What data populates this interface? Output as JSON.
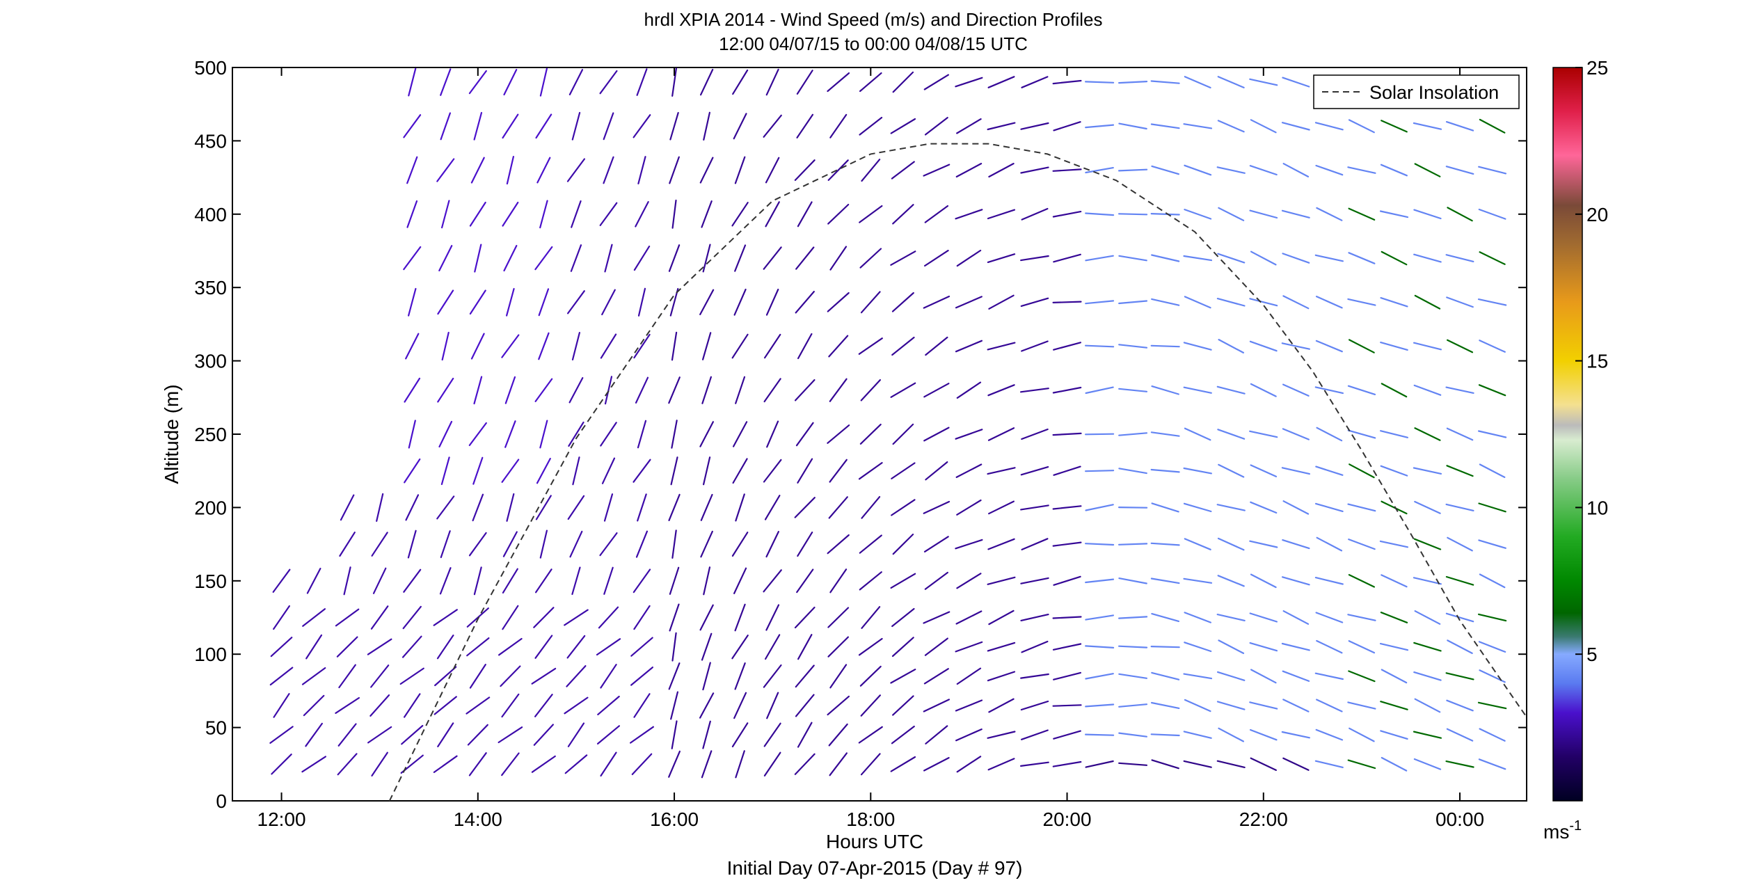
{
  "chart_data": {
    "type": "wind-barb-profile",
    "title": "hrdl XPIA 2014 - Wind Speed (m/s) and Direction Profiles",
    "subtitle": "12:00 04/07/15 to 00:00 04/08/15  UTC",
    "xlabel": "Hours UTC",
    "xlabel2": "Initial Day 07-Apr-2015 (Day # 97)",
    "ylabel": "Altitude (m)",
    "xlim": [
      11.5,
      24.68
    ],
    "ylim": [
      0,
      500
    ],
    "x_ticks": [
      12,
      14,
      16,
      18,
      20,
      22,
      24
    ],
    "x_tick_labels": [
      "12:00",
      "14:00",
      "16:00",
      "18:00",
      "20:00",
      "22:00",
      "00:00"
    ],
    "y_ticks": [
      0,
      50,
      100,
      150,
      200,
      250,
      300,
      350,
      400,
      450,
      500
    ],
    "y_tick_labels": [
      "0",
      "50",
      "100",
      "150",
      "200",
      "250",
      "300",
      "350",
      "400",
      "450",
      "500"
    ],
    "legend": {
      "label": "Solar Insolation",
      "placement": "top-right",
      "style": "dashed",
      "color": "#333333"
    },
    "colorbar": {
      "min": 0,
      "max": 25,
      "ticks": [
        5,
        10,
        15,
        20,
        25
      ],
      "tick_labels": [
        "5",
        "10",
        "15",
        "20",
        "25"
      ],
      "unit_label": "ms",
      "unit_exp": "-1",
      "stops": [
        [
          0,
          "#000022"
        ],
        [
          1.5,
          "#220066"
        ],
        [
          3,
          "#4a10cc"
        ],
        [
          4,
          "#5a7af0"
        ],
        [
          5,
          "#86aaff"
        ],
        [
          5.6,
          "#3a7a70"
        ],
        [
          6.4,
          "#006600"
        ],
        [
          7.5,
          "#008800"
        ],
        [
          9,
          "#22aa22"
        ],
        [
          11,
          "#88cc88"
        ],
        [
          12.3,
          "#d8ecd0"
        ],
        [
          12.8,
          "#bbbbbb"
        ],
        [
          13.5,
          "#f4e090"
        ],
        [
          15,
          "#f2d000"
        ],
        [
          17,
          "#e89a1a"
        ],
        [
          19,
          "#a06a30"
        ],
        [
          20.3,
          "#7a4a38"
        ],
        [
          22,
          "#ff6699"
        ],
        [
          23.5,
          "#e0204a"
        ],
        [
          25,
          "#aa0000"
        ]
      ]
    },
    "solar_insolation": {
      "x": [
        13.1,
        14.0,
        15.0,
        16.0,
        17.0,
        18.0,
        18.6,
        19.2,
        19.8,
        20.5,
        21.3,
        22.0,
        22.5,
        23.0,
        23.5,
        24.0,
        24.67
      ],
      "y": [
        0,
        124,
        247,
        345,
        409,
        441,
        448,
        448,
        441,
        423,
        388,
        338,
        293,
        239,
        182,
        123,
        58
      ]
    },
    "wind": {
      "times": [
        12.0,
        12.33,
        12.67,
        13.0,
        13.33,
        13.67,
        14.0,
        14.33,
        14.67,
        15.0,
        15.33,
        15.67,
        16.0,
        16.33,
        16.67,
        17.0,
        17.33,
        17.67,
        18.0,
        18.33,
        18.67,
        19.0,
        19.33,
        19.67,
        20.0,
        20.33,
        20.67,
        21.0,
        21.33,
        21.67,
        22.0,
        22.33,
        22.67,
        23.0,
        23.33,
        23.67,
        24.0,
        24.33
      ],
      "altitudes": [
        25,
        45,
        65,
        85,
        105,
        125,
        150,
        175,
        200,
        225,
        250,
        280,
        310,
        340,
        370,
        400,
        430,
        460,
        490
      ],
      "first_valid_time_index_per_altitude": [
        0,
        0,
        0,
        0,
        0,
        0,
        0,
        2,
        2,
        4,
        4,
        4,
        4,
        4,
        4,
        4,
        4,
        4,
        4
      ],
      "period1_end_time": 16.0,
      "period2_end_time": 20.3,
      "speed_ms": {
        "surface": 2.0,
        "aloft": 3.0,
        "early_low": 2.5,
        "afternoon": 2.2,
        "late": 4.2,
        "late_green": 6.5
      },
      "direction_deg_from": {
        "morning_low": 225,
        "morning_high": 205,
        "midday": 195,
        "afternoon": 265,
        "evening": 290
      }
    }
  }
}
